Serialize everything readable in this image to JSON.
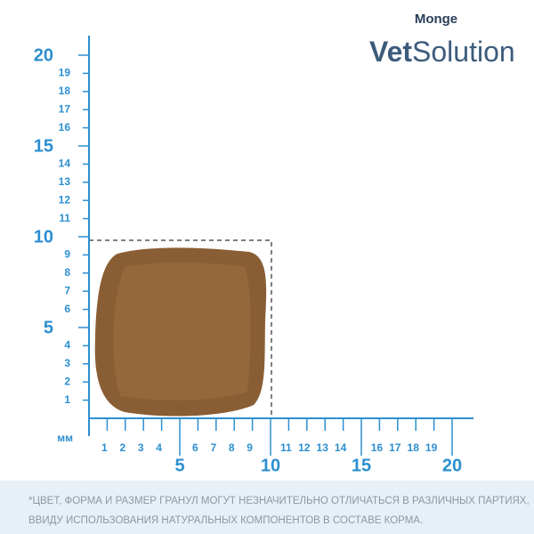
{
  "brand": {
    "name": "Monge",
    "product_bold": "Vet",
    "product": "Solution"
  },
  "ruler": {
    "unit": "мм",
    "y_labels": [
      "1",
      "2",
      "3",
      "4",
      "5",
      "6",
      "7",
      "8",
      "9",
      "10",
      "11",
      "12",
      "13",
      "14",
      "15",
      "16",
      "17",
      "18",
      "19",
      "20"
    ],
    "x_labels": [
      "1",
      "2",
      "3",
      "4",
      "5",
      "6",
      "7",
      "8",
      "9",
      "10",
      "11",
      "12",
      "13",
      "14",
      "15",
      "16",
      "17",
      "18",
      "19",
      "20"
    ]
  },
  "footnote": [
    "*ЦВЕТ, ФОРМА И РАЗМЕР ГРАНУЛ МОГУТ НЕЗНАЧИТЕЛЬНО ОТЛИЧАТЬСЯ В РАЗЛИЧНЫХ ПАРТИЯХ,",
    "ВВИДУ ИСПОЛЬЗОВАНИЯ НАТУРАЛЬНЫХ КОМПОНЕНТОВ В СОСТАВЕ КОРМА."
  ]
}
